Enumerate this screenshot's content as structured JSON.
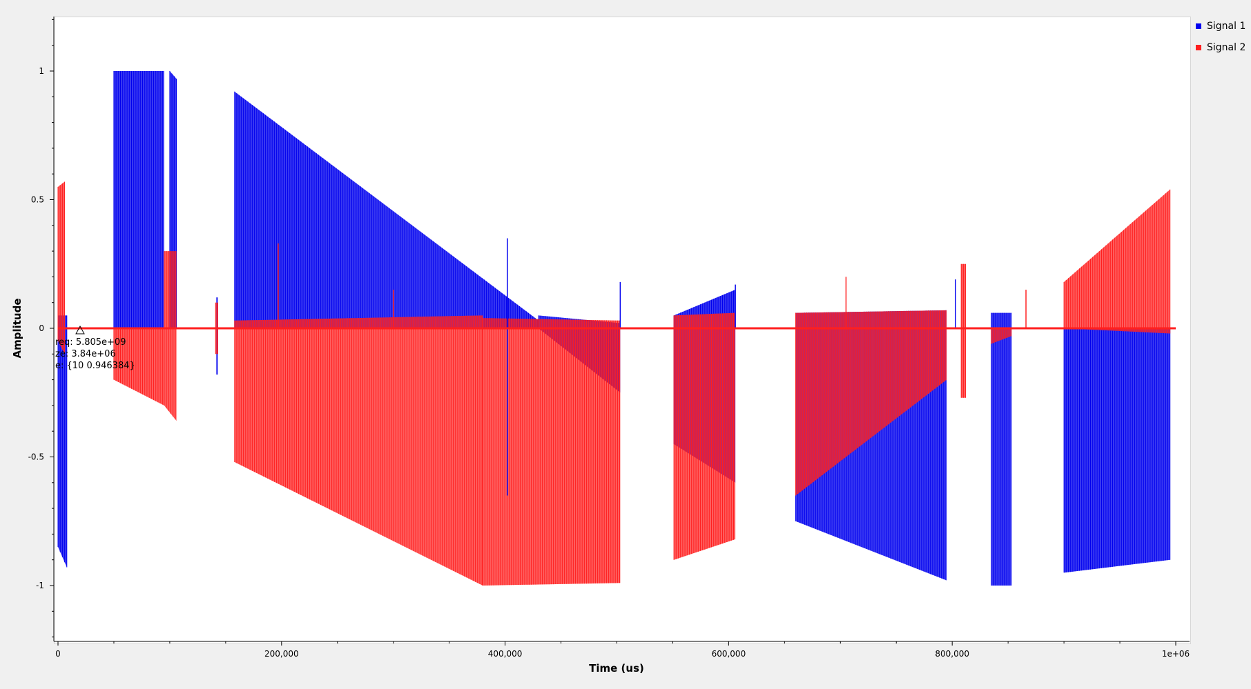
{
  "chart_data": {
    "type": "line",
    "title": "",
    "xlabel": "Time (us)",
    "ylabel": "Amplitude",
    "xlim": [
      0,
      1000000
    ],
    "ylim": [
      -1.2,
      1.2
    ],
    "x_ticks": [
      {
        "value": 0,
        "label": "0"
      },
      {
        "value": 200000,
        "label": "200,000"
      },
      {
        "value": 400000,
        "label": "400,000"
      },
      {
        "value": 600000,
        "label": "600,000"
      },
      {
        "value": 800000,
        "label": "800,000"
      },
      {
        "value": 1000000,
        "label": "1e+06"
      }
    ],
    "y_ticks": [
      {
        "value": 1,
        "label": "1"
      },
      {
        "value": 0.5,
        "label": "0.5"
      },
      {
        "value": 0,
        "label": "0"
      },
      {
        "value": -0.5,
        "label": "-0.5"
      },
      {
        "value": -1,
        "label": "-1"
      }
    ],
    "grid": false,
    "legend_position": "top-right",
    "series": [
      {
        "name": "Signal 1",
        "color": "#0000ee",
        "bursts": [
          {
            "x": [
              0,
              8000
            ],
            "top_start": 0.05,
            "top_end": 0.05,
            "bottom_start": -0.85,
            "bottom_end": -0.93
          },
          {
            "x": [
              50000,
              95000
            ],
            "top_start": 1.0,
            "top_end": 1.0,
            "bottom_start": 0.0,
            "bottom_end": 0.0
          },
          {
            "x": [
              100000,
              106000
            ],
            "top_start": 1.0,
            "top_end": 0.97,
            "bottom_start": 0.0,
            "bottom_end": 0.0
          },
          {
            "x": [
              142000,
              143000
            ],
            "top_start": 0.12,
            "top_end": 0.12,
            "bottom_start": -0.18,
            "bottom_end": -0.18
          },
          {
            "x": [
              158000,
              430000
            ],
            "top_start": 0.92,
            "top_end": 0.03,
            "bottom_start": 0.0,
            "bottom_end": 0.0
          },
          {
            "x": [
              430000,
              503000
            ],
            "top_start": 0.05,
            "top_end": 0.02,
            "bottom_start": 0.0,
            "bottom_end": -0.25
          },
          {
            "x": [
              551000,
              606000
            ],
            "top_start": 0.05,
            "top_end": 0.15,
            "bottom_start": -0.45,
            "bottom_end": -0.6
          },
          {
            "x": [
              660000,
              795000
            ],
            "top_start": 0.06,
            "top_end": 0.07,
            "bottom_start": -0.75,
            "bottom_end": -0.98
          },
          {
            "x": [
              835000,
              853000
            ],
            "top_start": 0.06,
            "top_end": 0.06,
            "bottom_start": -1.0,
            "bottom_end": -1.0
          },
          {
            "x": [
              900000,
              995000
            ],
            "top_start": 0.0,
            "top_end": 0.0,
            "bottom_start": -0.95,
            "bottom_end": -0.9
          }
        ]
      },
      {
        "name": "Signal 2",
        "color": "#ff1f1f",
        "bursts": [
          {
            "x": [
              0,
              6000
            ],
            "top_start": 0.55,
            "top_end": 0.57,
            "bottom_start": -0.05,
            "bottom_end": -0.1
          },
          {
            "x": [
              50000,
              95000
            ],
            "top_start": 0.0,
            "top_end": 0.0,
            "bottom_start": -0.2,
            "bottom_end": -0.3
          },
          {
            "x": [
              95000,
              106000
            ],
            "top_start": 0.3,
            "top_end": 0.3,
            "bottom_start": -0.3,
            "bottom_end": -0.36
          },
          {
            "x": [
              141000,
              143000
            ],
            "top_start": 0.1,
            "top_end": 0.1,
            "bottom_start": -0.1,
            "bottom_end": -0.1
          },
          {
            "x": [
              158000,
              380000
            ],
            "top_start": 0.03,
            "top_end": 0.05,
            "bottom_start": -0.52,
            "bottom_end": -1.0
          },
          {
            "x": [
              380000,
              503000
            ],
            "top_start": 0.04,
            "top_end": 0.03,
            "bottom_start": -1.0,
            "bottom_end": -0.99
          },
          {
            "x": [
              551000,
              606000
            ],
            "top_start": 0.05,
            "top_end": 0.06,
            "bottom_start": -0.9,
            "bottom_end": -0.82
          },
          {
            "x": [
              660000,
              795000
            ],
            "top_start": 0.06,
            "top_end": 0.07,
            "bottom_start": -0.65,
            "bottom_end": -0.2
          },
          {
            "x": [
              808000,
              812000
            ],
            "top_start": 0.25,
            "top_end": 0.25,
            "bottom_start": -0.27,
            "bottom_end": -0.27
          },
          {
            "x": [
              835000,
              853000
            ],
            "top_start": 0.0,
            "top_end": 0.0,
            "bottom_start": -0.06,
            "bottom_end": -0.03
          },
          {
            "x": [
              900000,
              995000
            ],
            "top_start": 0.18,
            "top_end": 0.54,
            "bottom_start": 0.0,
            "bottom_end": -0.02
          }
        ]
      }
    ],
    "spikes": [
      {
        "series": "Signal 2",
        "x": 197000,
        "y": 0.33
      },
      {
        "series": "Signal 2",
        "x": 300000,
        "y": 0.15
      },
      {
        "series": "Signal 1",
        "x": 402000,
        "y": 0.35
      },
      {
        "series": "Signal 1",
        "x": 402000,
        "y": -0.65
      },
      {
        "series": "Signal 1",
        "x": 503000,
        "y": 0.18
      },
      {
        "series": "Signal 1",
        "x": 606000,
        "y": 0.17
      },
      {
        "series": "Signal 2",
        "x": 705000,
        "y": 0.2
      },
      {
        "series": "Signal 1",
        "x": 803000,
        "y": 0.19
      },
      {
        "series": "Signal 2",
        "x": 866000,
        "y": 0.15
      },
      {
        "series": "Signal 2",
        "x": 1000000,
        "y": 0.0
      }
    ],
    "annotations": [
      {
        "text": "req: 5.805e+09",
        "x": 0,
        "y": -0.05
      },
      {
        "text": "ze: 3.84e+06",
        "x": 0,
        "y": -0.095
      },
      {
        "text": "e: {10 0.946384}",
        "x": 0,
        "y": -0.14
      }
    ]
  }
}
